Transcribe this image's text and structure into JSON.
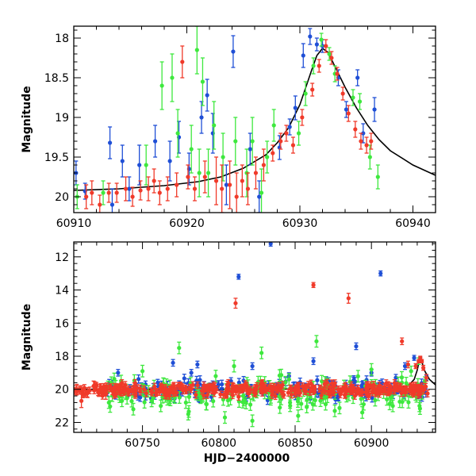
{
  "colors": {
    "blue": "#1f4fd6",
    "green": "#3ee83e",
    "red": "#f03a2a",
    "model": "#000000"
  },
  "chart_data": [
    {
      "type": "scatter",
      "ylabel": "Magnitude",
      "xlim": [
        60910,
        60942
      ],
      "ylim": [
        20.2,
        17.85
      ],
      "y_inverted": true,
      "x_ticks": [
        60910,
        60920,
        60930,
        60940
      ],
      "x_tick_labels": [
        "60910",
        "60920",
        "60930",
        "60940"
      ],
      "y_ticks": [
        18,
        18.5,
        19,
        19.5,
        20
      ],
      "y_tick_labels": [
        "18",
        "18.5",
        "19",
        "19.5",
        "20"
      ],
      "grid": false,
      "model_curve": {
        "x": [
          60910,
          60914,
          60918,
          60921,
          60923,
          60925,
          60927,
          60928,
          60929,
          60930,
          60931,
          60931.5,
          60932,
          60932.5,
          60933,
          60934,
          60935,
          60936,
          60937,
          60938,
          60940,
          60942
        ],
        "y": [
          19.92,
          19.9,
          19.86,
          19.81,
          19.75,
          19.64,
          19.47,
          19.32,
          19.13,
          18.84,
          18.42,
          18.22,
          18.13,
          18.18,
          18.33,
          18.62,
          18.88,
          19.1,
          19.28,
          19.42,
          19.6,
          19.73
        ]
      },
      "series": [
        {
          "color": "blue",
          "x": [
            60910.2,
            60911,
            60913.2,
            60913.4,
            60914.3,
            60914.9,
            60915.8,
            60917.2,
            60918.5,
            60919.3,
            60920.2,
            60921.3,
            60921.8,
            60922.3,
            60923.5,
            60924.1,
            60925.6,
            60926.4,
            60928.2,
            60929.1,
            60929.6,
            60930.3,
            60930.9,
            60931.5,
            60932,
            60933.4,
            60934.1,
            60935.1,
            60935.6,
            60936.6
          ],
          "y": [
            19.7,
            19.93,
            19.32,
            20.1,
            19.55,
            19.9,
            19.6,
            19.3,
            19.55,
            19.25,
            19.65,
            19.0,
            18.72,
            19.2,
            19.85,
            18.17,
            19.4,
            20.0,
            19.38,
            19.12,
            18.88,
            18.22,
            17.98,
            18.08,
            18.1,
            18.5,
            18.9,
            18.5,
            19.2,
            18.9
          ],
          "err": [
            0.15,
            0.1,
            0.2,
            0.2,
            0.2,
            0.15,
            0.25,
            0.2,
            0.25,
            0.2,
            0.2,
            0.2,
            0.2,
            0.25,
            0.25,
            0.2,
            0.2,
            0.2,
            0.15,
            0.1,
            0.15,
            0.15,
            0.1,
            0.08,
            0.08,
            0.1,
            0.1,
            0.1,
            0.12,
            0.15
          ]
        },
        {
          "color": "green",
          "x": [
            60910.3,
            60912.6,
            60916.4,
            60917.8,
            60918.7,
            60919.2,
            60920.4,
            60920.9,
            60921.1,
            60921.4,
            60921.9,
            60922.4,
            60923.2,
            60924.3,
            60925.3,
            60925.8,
            60926.6,
            60927.1,
            60927.7,
            60929.9,
            60930.5,
            60931.2,
            60931.9,
            60932.6,
            60933.1,
            60934.7,
            60935.3,
            60936.2,
            60936.9
          ],
          "y": [
            20.0,
            19.95,
            19.6,
            18.6,
            18.5,
            19.2,
            19.4,
            18.15,
            19.7,
            18.55,
            19.7,
            19.1,
            19.5,
            19.3,
            19.7,
            19.3,
            19.95,
            19.5,
            19.1,
            19.2,
            18.7,
            18.35,
            18.02,
            18.2,
            18.45,
            18.75,
            18.8,
            19.5,
            19.75
          ],
          "err": [
            0.15,
            0.15,
            0.25,
            0.3,
            0.3,
            0.3,
            0.3,
            0.3,
            0.3,
            0.3,
            0.3,
            0.3,
            0.3,
            0.3,
            0.3,
            0.3,
            0.3,
            0.2,
            0.2,
            0.15,
            0.15,
            0.1,
            0.08,
            0.08,
            0.1,
            0.1,
            0.1,
            0.15,
            0.15
          ]
        },
        {
          "color": "red",
          "x": [
            60911.1,
            60911.6,
            60912.3,
            60913.1,
            60913.8,
            60914.6,
            60915.2,
            60915.9,
            60916.6,
            60917.1,
            60917.6,
            60918.3,
            60919.1,
            60919.6,
            60920.1,
            60920.7,
            60921.6,
            60922.6,
            60923.1,
            60923.8,
            60924.4,
            60924.9,
            60925.4,
            60926.1,
            60926.8,
            60927.6,
            60928.3,
            60928.8,
            60929.4,
            60930.2,
            60931.1,
            60931.7,
            60932.3,
            60932.8,
            60933.3,
            60933.8,
            60934.3,
            60934.9,
            60935.4,
            60935.9,
            60936.3
          ],
          "y": [
            20.0,
            19.95,
            20.1,
            19.95,
            19.95,
            19.9,
            20.0,
            19.92,
            19.9,
            19.8,
            19.95,
            19.9,
            19.85,
            18.3,
            19.75,
            19.9,
            19.75,
            19.8,
            19.9,
            19.85,
            20.0,
            19.8,
            19.9,
            19.7,
            19.6,
            19.45,
            19.3,
            19.2,
            19.35,
            19.0,
            18.65,
            18.35,
            18.1,
            18.25,
            18.45,
            18.7,
            18.95,
            19.15,
            19.3,
            19.35,
            19.3
          ],
          "err": [
            0.15,
            0.15,
            0.12,
            0.12,
            0.12,
            0.15,
            0.12,
            0.12,
            0.15,
            0.15,
            0.15,
            0.15,
            0.15,
            0.2,
            0.15,
            0.15,
            0.2,
            0.3,
            0.3,
            0.3,
            0.3,
            0.2,
            0.2,
            0.2,
            0.2,
            0.1,
            0.1,
            0.1,
            0.1,
            0.1,
            0.08,
            0.08,
            0.08,
            0.08,
            0.08,
            0.08,
            0.1,
            0.1,
            0.1,
            0.1,
            0.1
          ]
        }
      ]
    },
    {
      "type": "scatter",
      "xlabel": "HJD−2400000",
      "ylabel": "Magnitude",
      "xlim": [
        60705,
        60942
      ],
      "ylim": [
        22.6,
        11.1
      ],
      "y_inverted": true,
      "x_ticks": [
        60750,
        60800,
        60850,
        60900
      ],
      "x_tick_labels": [
        "60750",
        "60800",
        "60850",
        "60900"
      ],
      "y_ticks": [
        12,
        14,
        16,
        18,
        20,
        22
      ],
      "y_tick_labels": [
        "12",
        "14",
        "16",
        "18",
        "20",
        "22"
      ],
      "grid": false,
      "model_curve": {
        "x": [
          60705,
          60800,
          60900,
          60920,
          60925,
          60928,
          60930,
          60931,
          60932,
          60933,
          60935,
          60938,
          60942
        ],
        "y": [
          20.0,
          20.0,
          19.98,
          19.85,
          19.7,
          19.4,
          18.85,
          18.42,
          18.13,
          18.35,
          18.9,
          19.4,
          19.73
        ]
      },
      "series": [
        {
          "color": "blue",
          "x": [
            60727,
            60734,
            60740,
            60746,
            60752,
            60758,
            60760,
            60764,
            60770,
            60776,
            60782,
            60786,
            60790,
            60796,
            60802,
            60808,
            60813,
            60818,
            60822,
            60828,
            60834,
            60840,
            60846,
            60852,
            60858,
            60862,
            60866,
            60872,
            60878,
            60886,
            60890,
            60894,
            60900,
            60906,
            60910,
            60916,
            60922,
            60928,
            60932,
            60936
          ],
          "y": [
            20.2,
            19.0,
            20.3,
            20.0,
            19.7,
            20.4,
            19.6,
            20.1,
            18.4,
            20.2,
            19.0,
            18.5,
            20.3,
            19.7,
            20.1,
            19.5,
            13.2,
            20.5,
            18.6,
            20.0,
            11.2,
            19.8,
            19.2,
            20.4,
            20.0,
            18.3,
            20.2,
            19.5,
            20.5,
            19.9,
            17.4,
            20.3,
            19.0,
            13.0,
            20.1,
            19.3,
            18.6,
            18.1,
            18.2,
            19.3
          ],
          "err": [
            0.2,
            0.2,
            0.2,
            0.2,
            0.2,
            0.2,
            0.2,
            0.2,
            0.2,
            0.2,
            0.2,
            0.2,
            0.2,
            0.2,
            0.2,
            0.2,
            0.15,
            0.2,
            0.2,
            0.2,
            0.15,
            0.2,
            0.2,
            0.2,
            0.2,
            0.2,
            0.2,
            0.2,
            0.2,
            0.2,
            0.2,
            0.2,
            0.2,
            0.15,
            0.2,
            0.2,
            0.2,
            0.15,
            0.15,
            0.15
          ],
          "band": {
            "from": 60727,
            "to": 60938,
            "center": 20.0,
            "spread": 0.55,
            "count": 170,
            "err": 0.25
          }
        },
        {
          "color": "green",
          "x": [
            60728,
            60736,
            60744,
            60750,
            60756,
            60762,
            60768,
            60774,
            60780,
            60786,
            60792,
            60798,
            60804,
            60810,
            60816,
            60822,
            60828,
            60834,
            60840,
            60846,
            60852,
            60858,
            60864,
            60870,
            60876,
            60882,
            60888,
            60894,
            60900,
            60908,
            60914,
            60920,
            60926,
            60931,
            60935
          ],
          "y": [
            20.8,
            19.5,
            21.2,
            18.9,
            20.7,
            21.0,
            19.8,
            17.5,
            21.5,
            20.2,
            20.9,
            19.2,
            21.7,
            18.6,
            20.4,
            21.9,
            17.8,
            20.6,
            21.1,
            19.4,
            21.6,
            20.3,
            17.1,
            20.9,
            21.3,
            19.8,
            20.5,
            21.4,
            18.8,
            20.2,
            21.0,
            19.6,
            18.9,
            18.3,
            19.5
          ],
          "err": [
            0.35,
            0.35,
            0.35,
            0.35,
            0.35,
            0.35,
            0.35,
            0.35,
            0.35,
            0.35,
            0.35,
            0.35,
            0.35,
            0.35,
            0.35,
            0.35,
            0.35,
            0.35,
            0.35,
            0.35,
            0.35,
            0.35,
            0.35,
            0.35,
            0.35,
            0.35,
            0.35,
            0.35,
            0.35,
            0.35,
            0.35,
            0.35,
            0.3,
            0.2,
            0.25
          ],
          "band": {
            "from": 60727,
            "to": 60938,
            "center": 20.3,
            "spread": 0.9,
            "count": 150,
            "err": 0.35
          }
        },
        {
          "color": "red",
          "x": [
            60707,
            60710,
            60714,
            60718,
            60722,
            60726,
            60811,
            60862,
            60885,
            60920,
            60924,
            60929,
            60931,
            60932,
            60933,
            60934,
            60936
          ],
          "y": [
            20.0,
            20.7,
            20.2,
            19.8,
            20.0,
            20.3,
            14.8,
            13.7,
            14.5,
            17.1,
            18.5,
            18.6,
            18.3,
            18.1,
            18.3,
            18.7,
            19.3
          ],
          "err": [
            0.3,
            0.4,
            0.3,
            0.3,
            0.3,
            0.3,
            0.3,
            0.15,
            0.3,
            0.2,
            0.2,
            0.15,
            0.1,
            0.1,
            0.1,
            0.15,
            0.2
          ],
          "band": {
            "from": 60705,
            "to": 60938,
            "center": 20.0,
            "spread": 0.35,
            "count": 380,
            "err": 0.2
          }
        }
      ]
    }
  ]
}
